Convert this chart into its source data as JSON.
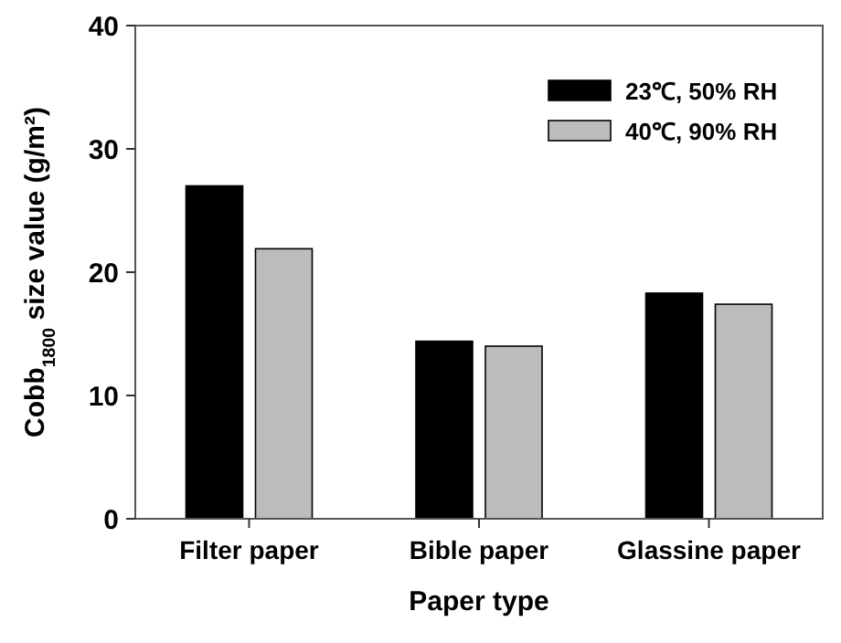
{
  "chart_data": {
    "type": "bar",
    "xlabel": "Paper type",
    "ylabel": "Cobb$_{1800}$ size value (g/m²)",
    "categories": [
      "Filter paper",
      "Bible paper",
      "Glassine paper"
    ],
    "series": [
      {
        "name": "23℃, 50% RH",
        "color": "#000000",
        "values": [
          27.0,
          14.4,
          18.3
        ]
      },
      {
        "name": "40℃, 90% RH",
        "color": "#bbbcbe",
        "values": [
          21.9,
          14.0,
          17.4
        ]
      }
    ],
    "ylim": [
      0,
      40
    ],
    "yticks": [
      0,
      10,
      20,
      30,
      40
    ],
    "legend": "top right",
    "grid": false
  }
}
